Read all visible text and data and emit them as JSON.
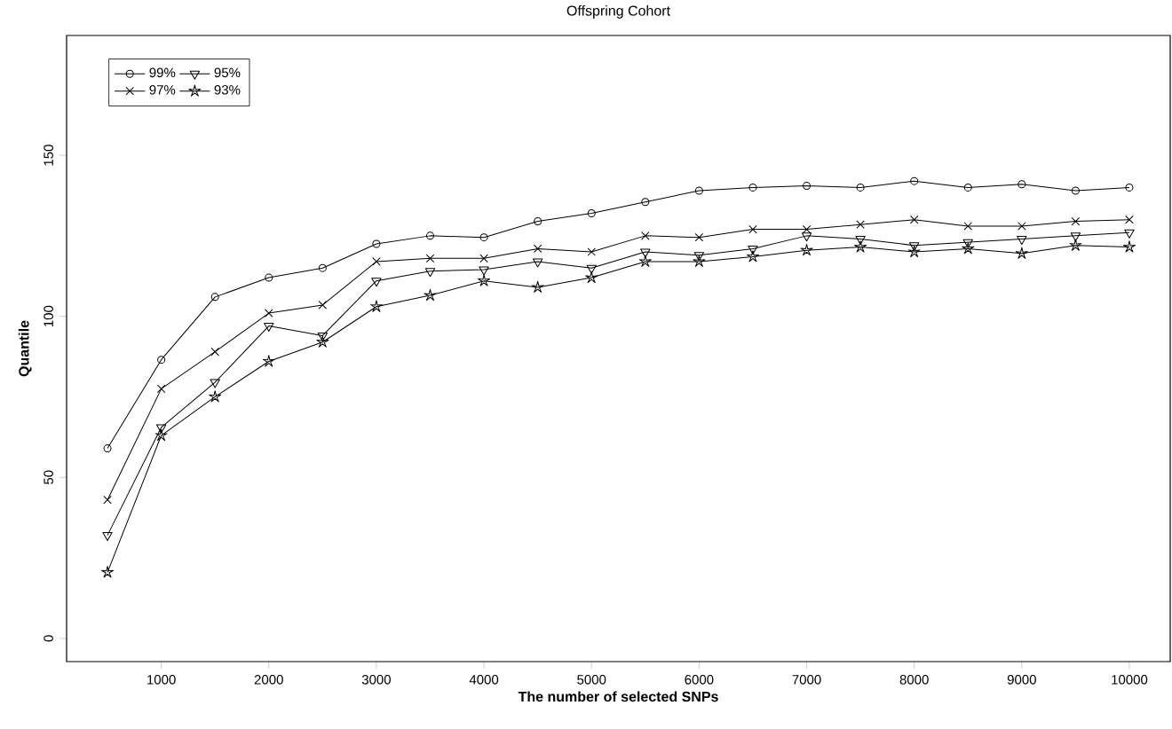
{
  "chart_data": {
    "type": "line",
    "title": "Offspring Cohort",
    "xlabel": "The number of selected SNPs",
    "ylabel": "Quantile",
    "x": [
      500,
      1000,
      1500,
      2000,
      2500,
      3000,
      3500,
      4000,
      4500,
      5000,
      5500,
      6000,
      6500,
      7000,
      7500,
      8000,
      8500,
      9000,
      9500,
      10000
    ],
    "xlim": [
      120,
      10380
    ],
    "ylim": [
      -7.2,
      187.2
    ],
    "xticks": [
      1000,
      2000,
      3000,
      4000,
      5000,
      6000,
      7000,
      8000,
      9000,
      10000
    ],
    "yticks": [
      0,
      50,
      100,
      150
    ],
    "grid": false,
    "legend": "top left",
    "series": [
      {
        "name": "99%",
        "color": "#000000",
        "marker": "circle",
        "values": [
          59,
          86.5,
          106,
          112,
          115,
          122.5,
          125,
          124.5,
          129.5,
          132,
          135.5,
          139,
          140,
          140.5,
          140,
          142,
          140,
          141,
          139,
          140
        ]
      },
      {
        "name": "97%",
        "color": "#000000",
        "marker": "cross",
        "values": [
          43,
          77.5,
          89,
          101,
          103.5,
          117,
          118,
          118,
          121,
          120,
          125,
          124.5,
          127,
          127,
          128.5,
          130,
          128,
          128,
          129.5,
          130
        ]
      },
      {
        "name": "95%",
        "color": "#000000",
        "marker": "triangle",
        "values": [
          32,
          65.5,
          79.5,
          97,
          94,
          111,
          114,
          114.5,
          117,
          115,
          120,
          119,
          121,
          125,
          124,
          122,
          123,
          124,
          125,
          126
        ]
      },
      {
        "name": "93%",
        "color": "#000000",
        "marker": "star",
        "values": [
          20.5,
          63,
          75,
          86,
          92,
          103,
          106.5,
          111,
          109,
          112,
          117,
          117,
          118.5,
          120.5,
          121.5,
          120,
          121,
          119.5,
          122,
          121.5
        ]
      }
    ]
  }
}
